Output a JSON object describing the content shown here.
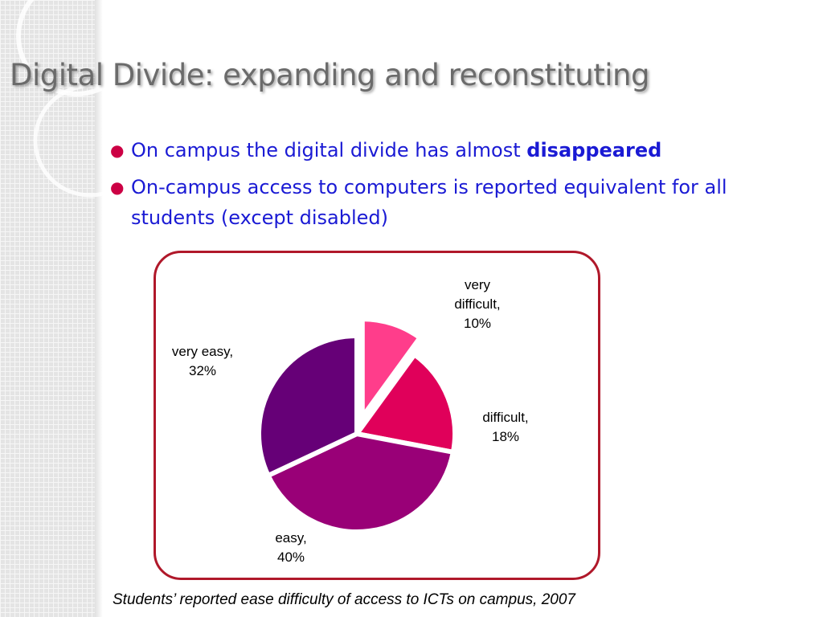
{
  "slide": {
    "title": "Digital Divide: expanding and reconstituting",
    "bullets": [
      {
        "text": "On campus the digital divide has almost ",
        "bold": "disappeared"
      },
      {
        "text": "On-campus access to computers is reported equivalent for all students (except disabled)",
        "bold": ""
      }
    ],
    "caption": "Students’ reported ease difficulty of access to ICTs on campus, 2007"
  },
  "colors": {
    "title": "#6b6b6b",
    "bullet_text": "#1a1ad4",
    "bullet_marker": "#cc0044",
    "frame_border": "#b0182a"
  },
  "chart_data": {
    "type": "pie",
    "start_angle_deg": 0,
    "direction": "clockwise",
    "slices": [
      {
        "name": "very difficult",
        "value": 10,
        "label_lines": [
          "very",
          "difficult,",
          "10%"
        ],
        "color": "#ff3d8b",
        "exploded": true
      },
      {
        "name": "difficult",
        "value": 18,
        "label_lines": [
          "difficult,",
          "18%"
        ],
        "color": "#e0005a",
        "exploded": false
      },
      {
        "name": "easy",
        "value": 40,
        "label_lines": [
          "easy,",
          "40%"
        ],
        "color": "#990077",
        "exploded": false
      },
      {
        "name": "very easy",
        "value": 32,
        "label_lines": [
          "very easy,",
          "32%"
        ],
        "color": "#660077",
        "exploded": false
      }
    ]
  }
}
